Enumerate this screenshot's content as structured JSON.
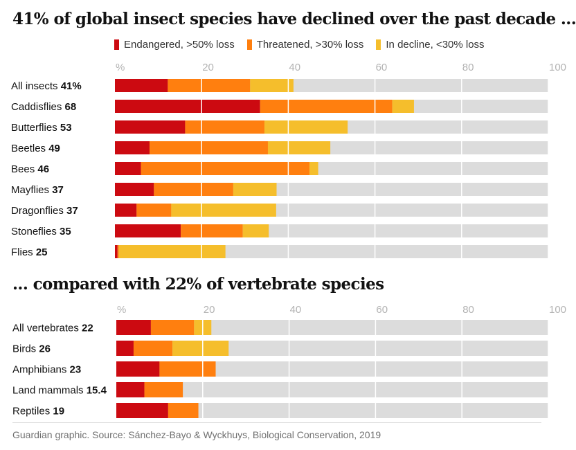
{
  "colors": {
    "endangered": "#cc0a11",
    "threatened": "#ff7f0f",
    "decline": "#f5be2c",
    "background_bar": "#dcdcdc",
    "grid": "#ffffff"
  },
  "legend": {
    "endangered": "Endangered, >50% loss",
    "threatened": "Threatened, >30% loss",
    "decline": "In decline, <30% loss"
  },
  "source": "Guardian graphic. Source: Sánchez-Bayo & Wyckhuys, Biological Conservation, 2019",
  "chart_data": [
    {
      "type": "bar",
      "orientation": "horizontal",
      "stacked": true,
      "title": "41% of global insect species have  declined over the past decade ...",
      "xlim": [
        0,
        100
      ],
      "ticks": [
        "%",
        "20",
        "40",
        "60",
        "80",
        "100"
      ],
      "tick_values": [
        0,
        20,
        40,
        60,
        80,
        100
      ],
      "series_names": [
        "Endangered, >50% loss",
        "Threatened, >30% loss",
        "In decline, <30% loss"
      ],
      "categories": [
        {
          "label": "All insects",
          "total": "41%",
          "endangered": 12.2,
          "threatened": 19,
          "decline": 10
        },
        {
          "label": "Caddisflies",
          "total": "68",
          "endangered": 33.5,
          "threatened": 30.5,
          "decline": 5
        },
        {
          "label": "Butterflies",
          "total": "53",
          "endangered": 16.2,
          "threatened": 18.3,
          "decline": 19.2
        },
        {
          "label": "Beetles",
          "total": "49",
          "endangered": 8,
          "threatened": 27.3,
          "decline": 14.4
        },
        {
          "label": "Bees",
          "total": "46",
          "endangered": 6,
          "threatened": 38.9,
          "decline": 2
        },
        {
          "label": "Mayflies",
          "total": "37",
          "endangered": 9,
          "threatened": 18.3,
          "decline": 10
        },
        {
          "label": "Dragonflies",
          "total": "37",
          "endangered": 5,
          "threatened": 8,
          "decline": 24.2
        },
        {
          "label": "Stoneflies",
          "total": "35",
          "endangered": 15.2,
          "threatened": 14.3,
          "decline": 6
        },
        {
          "label": "Flies",
          "total": "25",
          "endangered": 0.6,
          "threatened": 0.3,
          "decline": 24.6
        }
      ]
    },
    {
      "type": "bar",
      "orientation": "horizontal",
      "stacked": true,
      "title": "... compared with 22% of vertebrate species",
      "xlim": [
        0,
        100
      ],
      "ticks": [
        "%",
        "20",
        "40",
        "60",
        "80",
        "100"
      ],
      "tick_values": [
        0,
        20,
        40,
        60,
        80,
        100
      ],
      "series_names": [
        "Endangered, >50% loss",
        "Threatened, >30% loss",
        "In decline, <30% loss"
      ],
      "categories": [
        {
          "label": "All vertebrates",
          "total": "22",
          "endangered": 8,
          "threatened": 10,
          "decline": 4
        },
        {
          "label": "Birds",
          "total": "26",
          "endangered": 4,
          "threatened": 9,
          "decline": 13
        },
        {
          "label": "Amphibians",
          "total": "23",
          "endangered": 10,
          "threatened": 13,
          "decline": 0
        },
        {
          "label": "Land mammals",
          "total": "15.4",
          "endangered": 6.5,
          "threatened": 8.9,
          "decline": 0
        },
        {
          "label": "Reptiles",
          "total": "19",
          "endangered": 12,
          "threatened": 7,
          "decline": 0
        }
      ]
    }
  ]
}
